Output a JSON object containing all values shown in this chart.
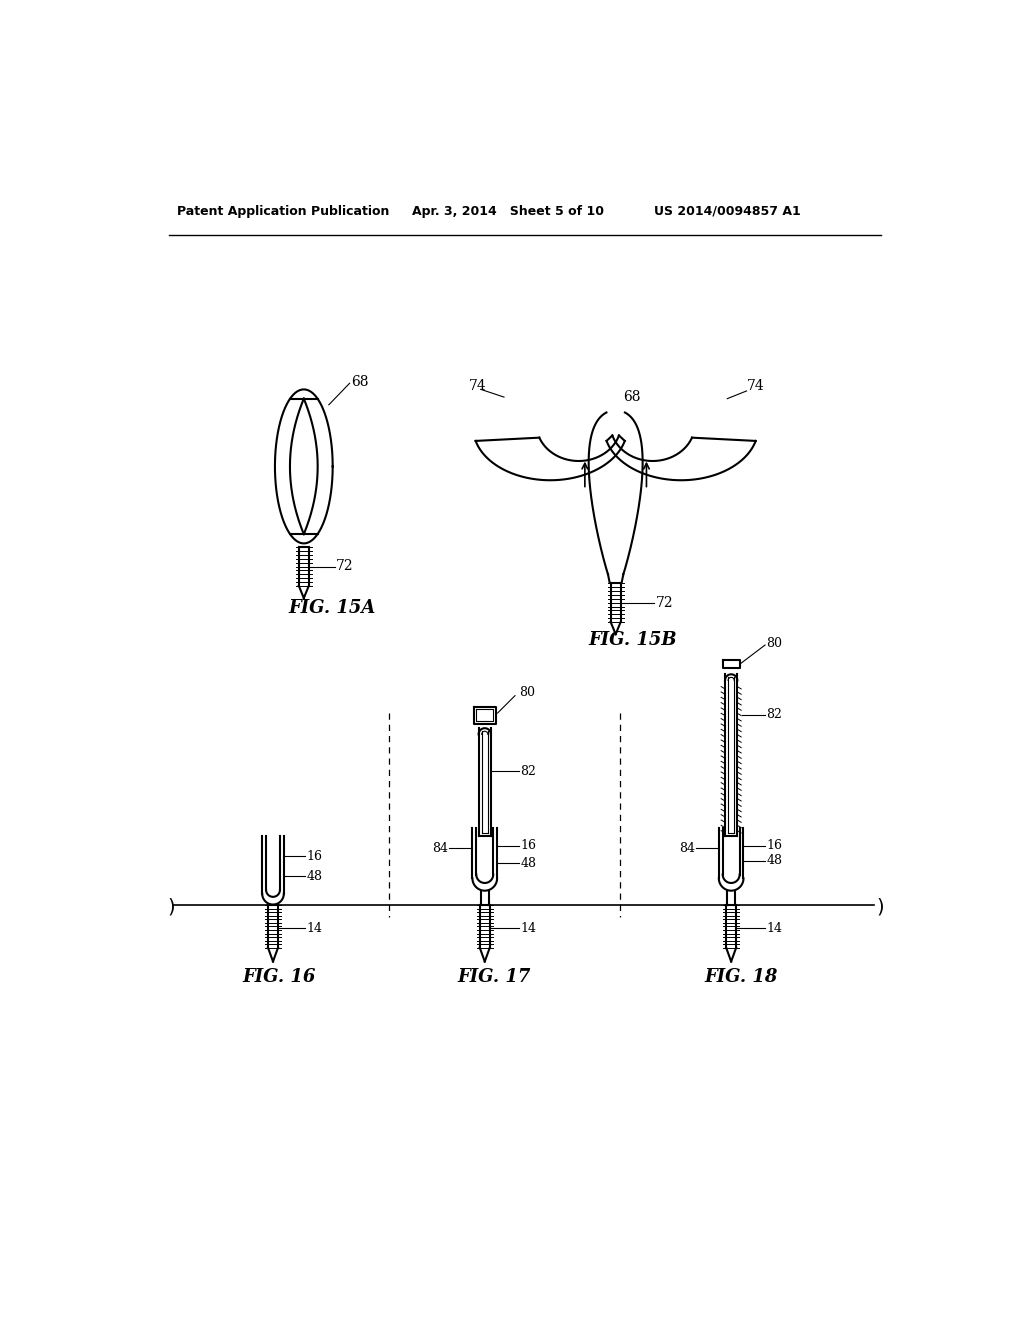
{
  "bg_color": "#ffffff",
  "line_color": "#000000",
  "header_line1": "Patent Application Publication",
  "header_line2": "Apr. 3, 2014   Sheet 5 of 10",
  "header_line3": "US 2014/0094857 A1",
  "fig15a_label": "FIG. 15A",
  "fig15b_label": "FIG. 15B",
  "fig16_label": "FIG. 16",
  "fig17_label": "FIG. 17",
  "fig18_label": "FIG. 18"
}
